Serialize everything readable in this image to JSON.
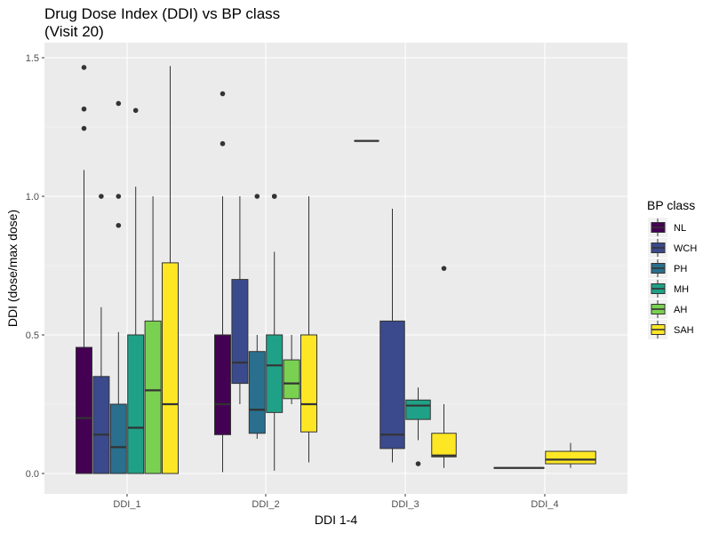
{
  "chart_data": {
    "type": "boxplot",
    "title": "Drug Dose Index (DDI) vs BP class",
    "subtitle": "(Visit 20)",
    "xlabel": "DDI 1-4",
    "ylabel": "DDI (dose/max dose)",
    "ylim": [
      -0.07,
      1.57
    ],
    "yticks": [
      "0.0",
      "0.5",
      "1.0",
      "1.5"
    ],
    "categories": [
      "DDI_1",
      "DDI_2",
      "DDI_3",
      "DDI_4"
    ],
    "grid": true,
    "legend": {
      "title": "BP class",
      "placement": "right"
    },
    "series": [
      {
        "name": "NL",
        "color": "#440154",
        "boxes": [
          {
            "category": "DDI_1",
            "min": 0.0,
            "q1": 0.0,
            "median": 0.2,
            "q3": 0.455,
            "max": 1.095,
            "outliers": [
              1.465,
              1.315,
              1.245
            ]
          },
          {
            "category": "DDI_2",
            "min": 0.005,
            "q1": 0.14,
            "median": 0.25,
            "q3": 0.5,
            "max": 1.0,
            "outliers": [
              1.37,
              1.19
            ]
          },
          {
            "category": "DDI_3",
            "min": 1.2,
            "q1": 1.2,
            "median": 1.2,
            "q3": 1.2,
            "max": 1.2,
            "outliers": []
          },
          {
            "category": "DDI_4",
            "min": 0.02,
            "q1": 0.02,
            "median": 0.02,
            "q3": 0.02,
            "max": 0.02,
            "outliers": []
          }
        ]
      },
      {
        "name": "WCH",
        "color": "#3b4a8c",
        "boxes": [
          {
            "category": "DDI_1",
            "min": 0.0,
            "q1": 0.0,
            "median": 0.14,
            "q3": 0.35,
            "max": 0.6,
            "outliers": [
              1.0
            ]
          },
          {
            "category": "DDI_2",
            "min": 0.25,
            "q1": 0.325,
            "median": 0.4,
            "q3": 0.7,
            "max": 1.0,
            "outliers": []
          },
          {
            "category": "DDI_3",
            "min": 0.04,
            "q1": 0.09,
            "median": 0.14,
            "q3": 0.55,
            "max": 0.955,
            "outliers": []
          }
        ]
      },
      {
        "name": "PH",
        "color": "#2a6f8e",
        "boxes": [
          {
            "category": "DDI_1",
            "min": 0.0,
            "q1": 0.0,
            "median": 0.095,
            "q3": 0.25,
            "max": 0.51,
            "outliers": [
              1.335,
              1.0,
              0.895
            ]
          },
          {
            "category": "DDI_2",
            "min": 0.125,
            "q1": 0.145,
            "median": 0.23,
            "q3": 0.44,
            "max": 0.5,
            "outliers": [
              1.0
            ]
          }
        ]
      },
      {
        "name": "MH",
        "color": "#1fa187",
        "boxes": [
          {
            "category": "DDI_1",
            "min": 0.0,
            "q1": 0.0,
            "median": 0.165,
            "q3": 0.5,
            "max": 1.035,
            "outliers": [
              1.31
            ]
          },
          {
            "category": "DDI_2",
            "min": 0.01,
            "q1": 0.22,
            "median": 0.39,
            "q3": 0.5,
            "max": 0.8,
            "outliers": [
              1.0,
              1.0
            ]
          },
          {
            "category": "DDI_3",
            "min": 0.12,
            "q1": 0.195,
            "median": 0.245,
            "q3": 0.265,
            "max": 0.31,
            "outliers": [
              0.035
            ]
          }
        ]
      },
      {
        "name": "AH",
        "color": "#7ad151",
        "boxes": [
          {
            "category": "DDI_1",
            "min": 0.0,
            "q1": 0.0,
            "median": 0.3,
            "q3": 0.55,
            "max": 1.0,
            "outliers": []
          },
          {
            "category": "DDI_2",
            "min": 0.25,
            "q1": 0.27,
            "median": 0.325,
            "q3": 0.41,
            "max": 0.5,
            "outliers": []
          }
        ]
      },
      {
        "name": "SAH",
        "color": "#fde725",
        "boxes": [
          {
            "category": "DDI_1",
            "min": 0.0,
            "q1": 0.0,
            "median": 0.25,
            "q3": 0.76,
            "max": 1.47,
            "outliers": []
          },
          {
            "category": "DDI_2",
            "min": 0.04,
            "q1": 0.15,
            "median": 0.25,
            "q3": 0.5,
            "max": 1.0,
            "outliers": []
          },
          {
            "category": "DDI_3",
            "min": 0.02,
            "q1": 0.06,
            "median": 0.065,
            "q3": 0.145,
            "max": 0.25,
            "outliers": [
              0.74
            ]
          },
          {
            "category": "DDI_4",
            "min": 0.02,
            "q1": 0.035,
            "median": 0.05,
            "q3": 0.08,
            "max": 0.11,
            "outliers": []
          }
        ]
      }
    ]
  },
  "colors": {
    "panel_background": "#ebebeb",
    "grid_major": "#ffffff",
    "grid_minor": "#f5f5f5",
    "outline": "#333333"
  }
}
